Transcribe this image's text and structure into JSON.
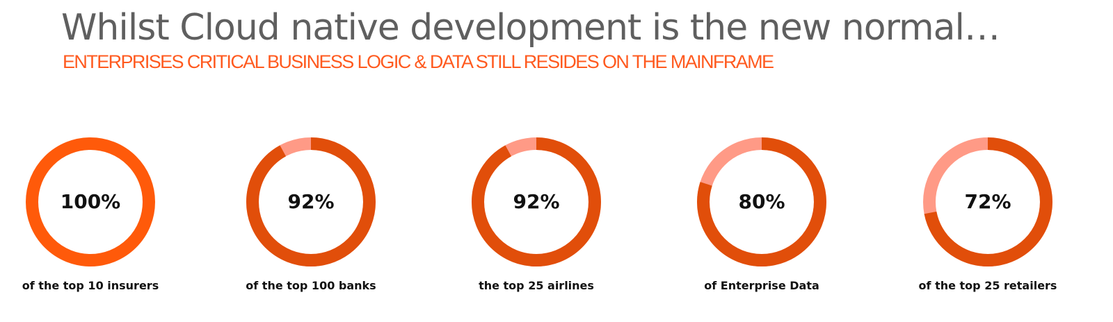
{
  "header": {
    "title": "Whilst Cloud native development is the new normal…",
    "subtitle": "ENTERPRISES  CRITICAL BUSINESS LOGIC & DATA STILL RESIDES ON THE MAINFRAME"
  },
  "colors": {
    "full": "#ff5a0a",
    "filled": "#e14e0a",
    "remainder": "#ff9a86"
  },
  "chart_data": {
    "type": "pie",
    "title": "",
    "items": [
      {
        "value": 100,
        "label": "100%",
        "caption": "of the top 10 insurers"
      },
      {
        "value": 92,
        "label": "92%",
        "caption": "of the top 100 banks"
      },
      {
        "value": 92,
        "label": "92%",
        "caption": "the top 25 airlines"
      },
      {
        "value": 80,
        "label": "80%",
        "caption": "of Enterprise Data"
      },
      {
        "value": 72,
        "label": "72%",
        "caption": "of the top 25 retailers"
      }
    ]
  }
}
